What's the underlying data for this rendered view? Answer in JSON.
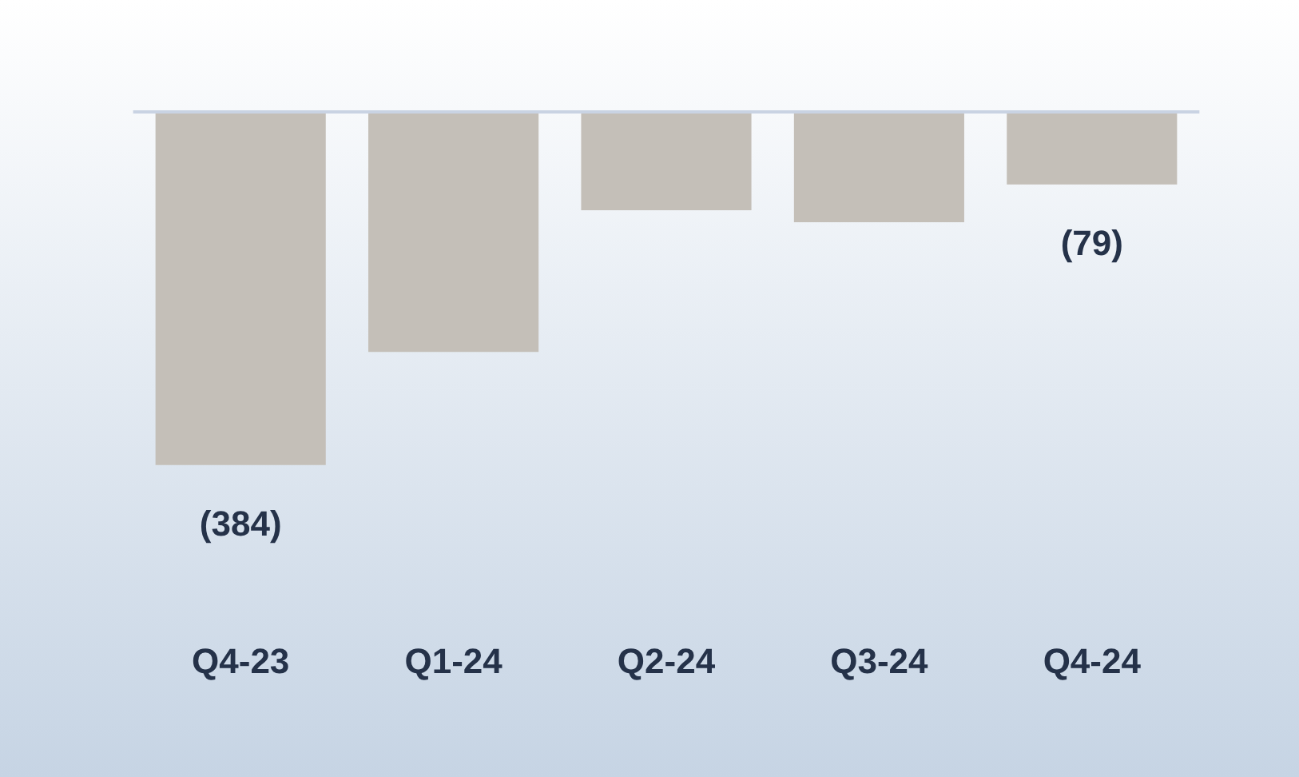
{
  "chart_data": {
    "type": "bar",
    "categories": [
      "Q4-23",
      "Q1-24",
      "Q2-24",
      "Q3-24",
      "Q4-24"
    ],
    "values": [
      -384,
      -261,
      -107,
      -120,
      -79
    ],
    "value_labels": [
      "(384)",
      null,
      null,
      null,
      "(79)"
    ],
    "color": "#c4bfb8",
    "grid": false,
    "legend": false
  }
}
